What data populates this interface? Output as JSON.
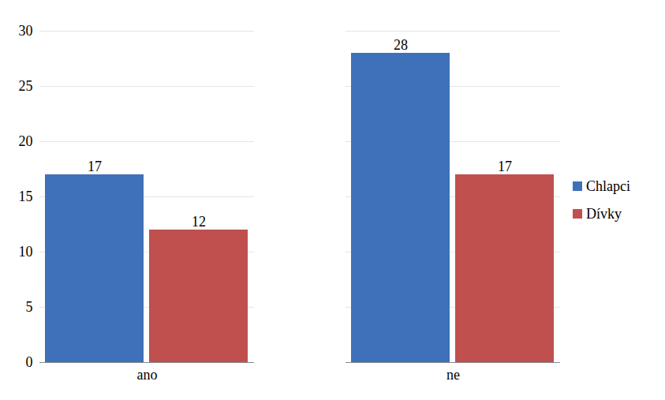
{
  "chart_data": {
    "type": "bar",
    "categories": [
      "ano",
      "ne"
    ],
    "series": [
      {
        "name": "Chlapci",
        "color": "#3e71b9",
        "values": [
          17,
          28
        ]
      },
      {
        "name": "Dívky",
        "color": "#c0504d",
        "values": [
          12,
          17
        ]
      }
    ],
    "ylim": [
      0,
      30
    ],
    "yticks": [
      0,
      5,
      10,
      15,
      20,
      25,
      30
    ],
    "grid": true,
    "data_labels": true,
    "legend": "right"
  }
}
